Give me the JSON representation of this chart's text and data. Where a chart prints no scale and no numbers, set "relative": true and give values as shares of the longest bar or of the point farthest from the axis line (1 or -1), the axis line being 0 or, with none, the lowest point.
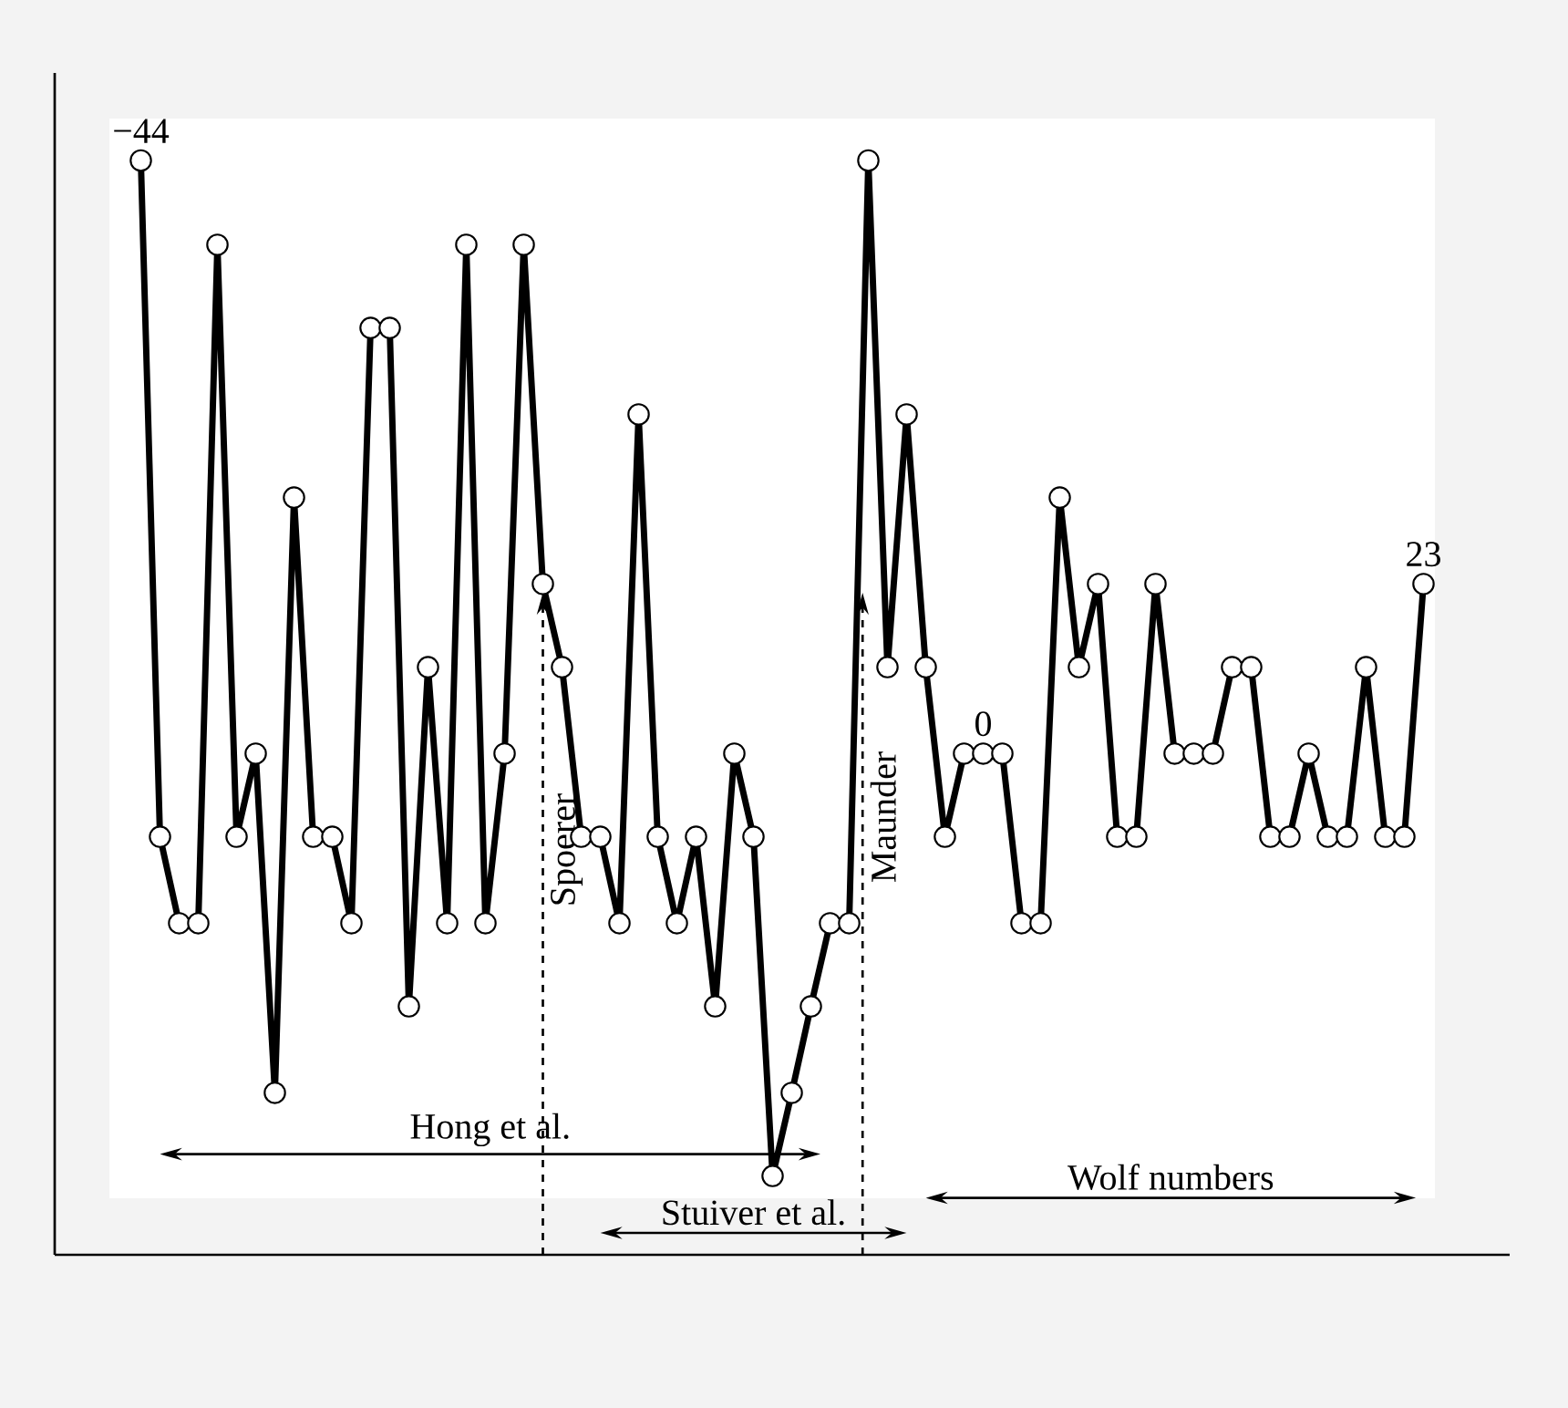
{
  "chart_data": {
    "type": "line",
    "relative": true,
    "marker": "circle",
    "line_style": "solid",
    "categories": [
      null,
      null,
      null,
      null,
      null,
      null,
      null,
      null,
      null,
      null,
      null,
      null,
      null,
      null,
      null,
      null,
      null,
      null,
      null,
      null,
      null,
      null,
      null,
      null,
      null,
      null,
      null,
      null,
      null,
      null,
      null,
      null,
      null,
      null,
      null,
      null,
      null,
      null,
      null,
      null,
      null,
      null,
      null,
      null,
      null,
      null,
      null,
      null,
      null,
      null,
      null,
      null,
      null,
      null,
      null,
      null,
      null,
      null,
      null,
      null,
      null,
      null,
      null,
      null,
      null,
      null,
      null,
      null
    ],
    "series": [
      {
        "color": "#000000",
        "values": [
          1,
          0.382,
          0.303,
          0.303,
          0.923,
          0.382,
          0.458,
          0.148,
          0.692,
          0.382,
          0.382,
          0.303,
          0.847,
          0.847,
          0.227,
          0.537,
          0.303,
          0.923,
          0.303,
          0.458,
          0.923,
          0.613,
          0.537,
          0.382,
          0.382,
          0.303,
          0.768,
          0.382,
          0.303,
          0.382,
          0.227,
          0.458,
          0.382,
          0.072,
          0.148,
          0.227,
          0.303,
          0.303,
          1,
          0.537,
          0.768,
          0.537,
          0.382,
          0.458,
          0.458,
          0.458,
          0.303,
          0.303,
          0.692,
          0.537,
          0.613,
          0.382,
          0.382,
          0.613,
          0.458,
          0.458,
          0.458,
          0.537,
          0.537,
          0.382,
          0.382,
          0.458,
          0.382,
          0.382,
          0.537,
          0.382,
          0.382,
          0.613
        ]
      }
    ],
    "annotations": [
      "−44",
      "0",
      "23",
      "Spoerer",
      "Maunder",
      "Hong et al.",
      "Stuiver et al.",
      "Wolf numbers"
    ]
  }
}
